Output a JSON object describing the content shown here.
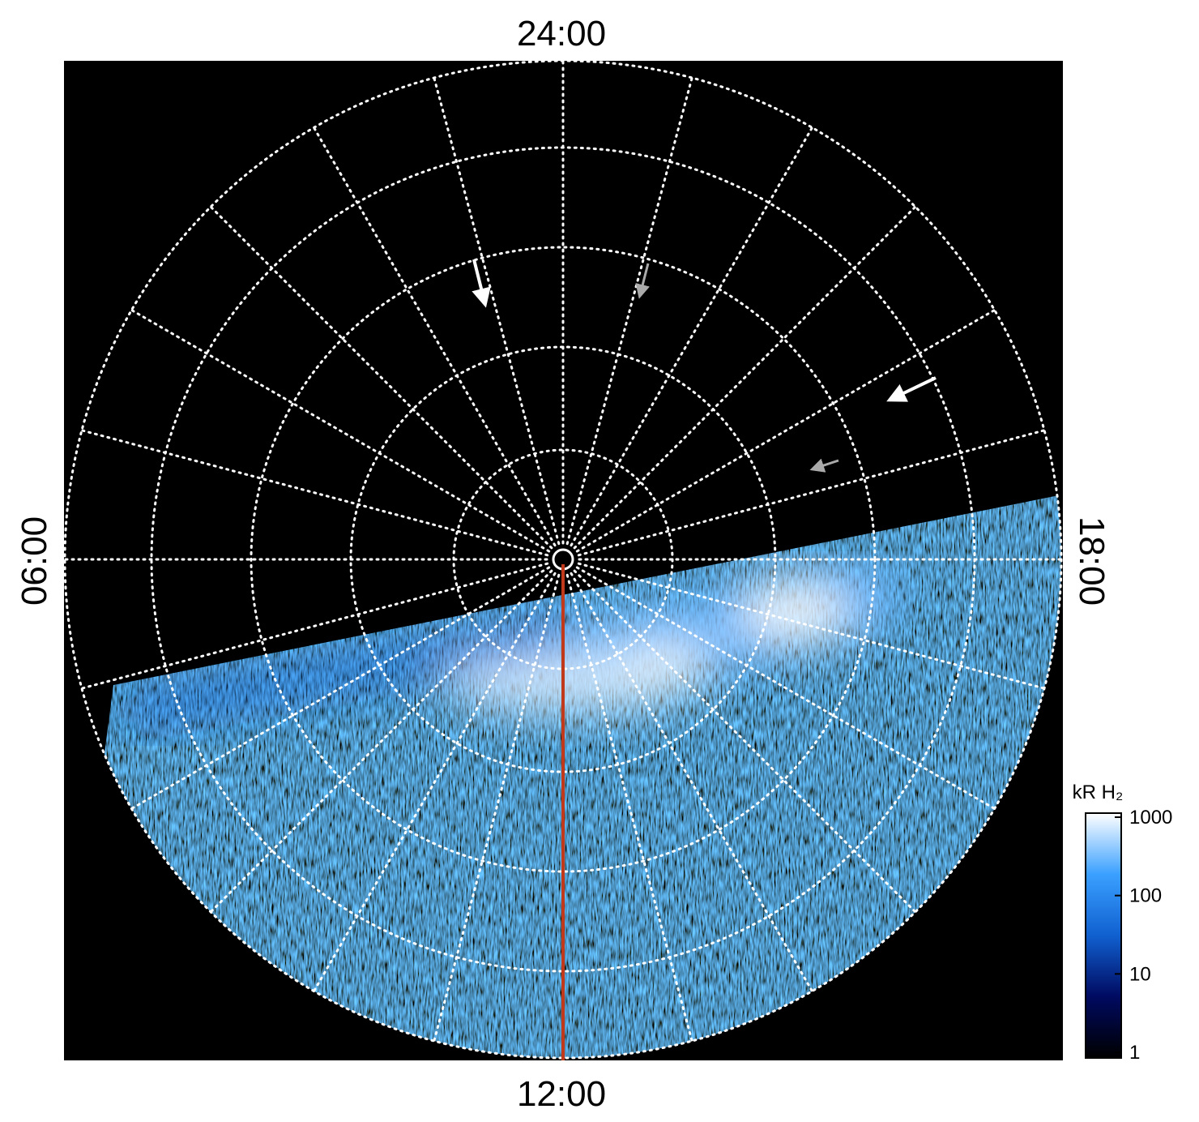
{
  "chart_data": {
    "type": "polar-image",
    "directions": {
      "top": "24:00",
      "bottom": "12:00",
      "left": "06:00",
      "right": "18:00"
    },
    "colorbar": {
      "label": "kR H₂",
      "log": true,
      "ylim": [
        1,
        1000
      ],
      "yticks": [
        1,
        10,
        100,
        1000
      ],
      "colors": [
        "#000000",
        "#000a60",
        "#1060d0",
        "#3aa0ff",
        "#ffffff"
      ]
    },
    "grid": true
  }
}
